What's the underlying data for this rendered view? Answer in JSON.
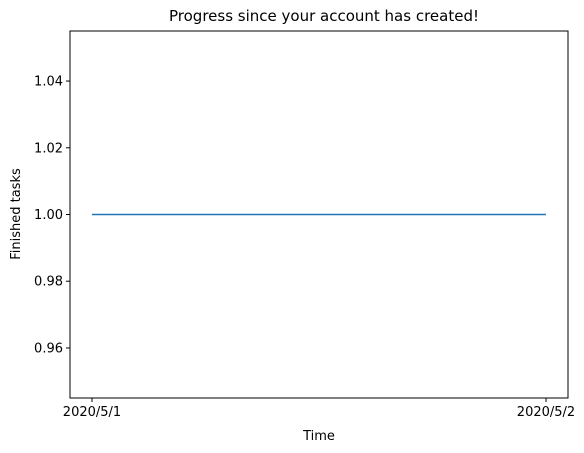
{
  "chart_data": {
    "type": "line",
    "title": "Progress since your account has created!",
    "xlabel": "Time",
    "ylabel": "Finished tasks",
    "categories": [
      "2020/5/1",
      "2020/5/2"
    ],
    "series": [
      {
        "values": [
          1.0,
          1.0
        ],
        "color": "#1f77b4"
      }
    ],
    "ylim": [
      0.945,
      1.055
    ],
    "yticks": [
      0.96,
      0.98,
      1.0,
      1.02,
      1.04
    ],
    "ytick_labels": [
      "0.96",
      "0.98",
      "1.00",
      "1.02",
      "1.04"
    ],
    "grid": false,
    "legend": "none"
  }
}
